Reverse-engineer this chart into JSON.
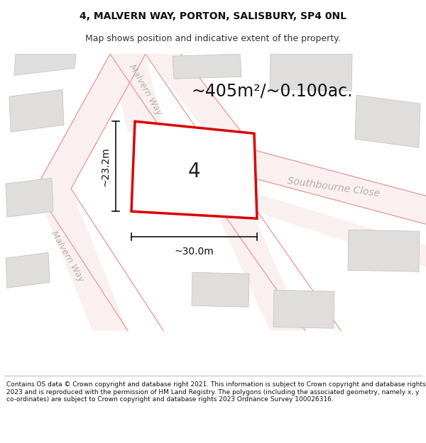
{
  "title": "4, MALVERN WAY, PORTON, SALISBURY, SP4 0NL",
  "subtitle": "Map shows position and indicative extent of the property.",
  "area_label": "~405m²/~0.100ac.",
  "property_number": "4",
  "dim_width": "~30.0m",
  "dim_height": "~23.2m",
  "road_label_upper": "Malvern Way",
  "road_label_lower": "Malvern Way",
  "road_label_sc": "Southbourne Close",
  "footer": "Contains OS data © Crown copyright and database right 2021. This information is subject to Crown copyright and database rights 2023 and is reproduced with the permission of HM Land Registry. The polygons (including the associated geometry, namely x, y co-ordinates) are subject to Crown copyright and database rights 2023 Ordnance Survey 100026316.",
  "map_bg": "#f2f0ee",
  "building_color": "#e0dedd",
  "building_edge": "#c8c5c3",
  "road_line_color": "#e8a0a0",
  "road_fill_color": "#faf0f0",
  "property_line_color": "#dd0000",
  "dim_line_color": "#111111",
  "road_text_color": "#b8b0b0",
  "title_fontsize": 10,
  "subtitle_fontsize": 9,
  "area_fontsize": 17,
  "number_fontsize": 20,
  "dim_fontsize": 10,
  "road_fontsize": 9,
  "footer_fontsize": 6.5
}
